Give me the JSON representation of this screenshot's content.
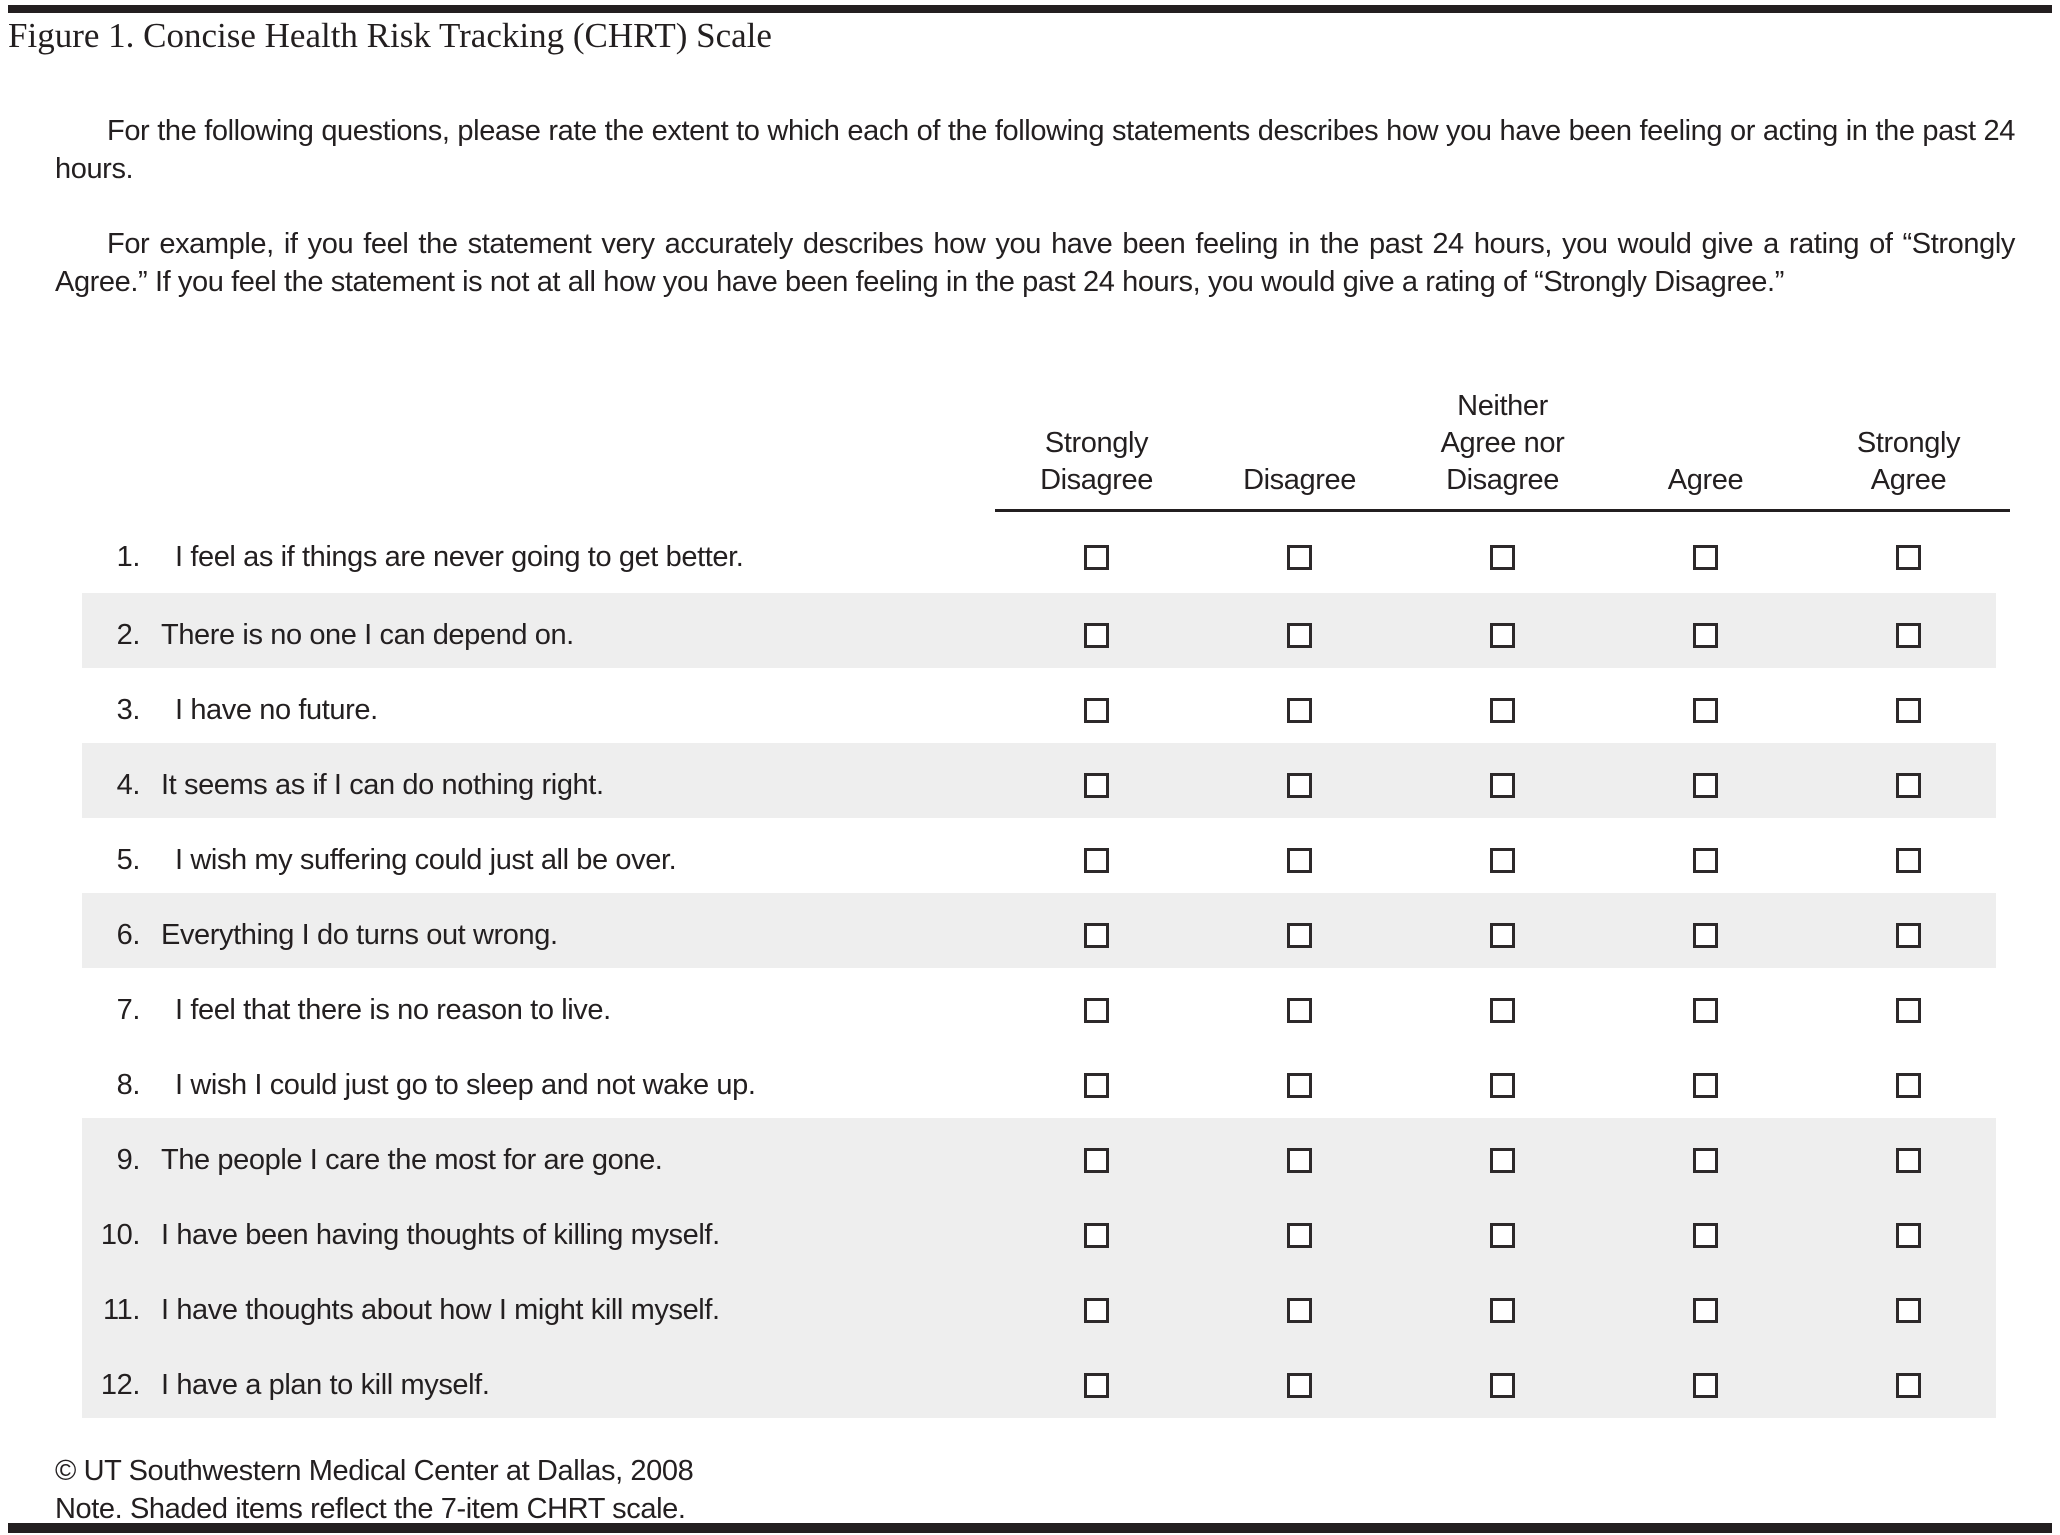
{
  "title": "Figure 1. Concise Health Risk Tracking (CHRT) Scale",
  "intro": [
    "For the following questions, please rate the extent to which each of the following statements describes how you have been feeling or acting in the past 24 hours.",
    "For example, if you feel the statement very accurately describes how you have been feeling in the past 24 hours, you would give a rating of “Strongly Agree.” If you feel the statement is not at all how you have been feeling in the past 24 hours, you would give a rating of “Strongly Disagree.”"
  ],
  "scale": {
    "options": [
      {
        "label": "Strongly Disagree",
        "lines": [
          "Strongly",
          "Disagree"
        ]
      },
      {
        "label": "Disagree",
        "lines": [
          "Disagree"
        ]
      },
      {
        "label": "Neither Agree nor Disagree",
        "lines": [
          "Neither",
          "Agree nor",
          "Disagree"
        ]
      },
      {
        "label": "Agree",
        "lines": [
          "Agree"
        ]
      },
      {
        "label": "Strongly Agree",
        "lines": [
          "Strongly",
          "Agree"
        ]
      }
    ],
    "items": [
      {
        "number": "1.",
        "text": "I feel as if things are never going to get better.",
        "shaded": false
      },
      {
        "number": "2.",
        "text": "There is no one I can depend on.",
        "shaded": true
      },
      {
        "number": "3.",
        "text": "I have no future.",
        "shaded": false
      },
      {
        "number": "4.",
        "text": "It seems as if I can do nothing right.",
        "shaded": true
      },
      {
        "number": "5.",
        "text": "I wish my suffering could just all be over.",
        "shaded": false
      },
      {
        "number": "6.",
        "text": "Everything I do turns out wrong.",
        "shaded": true
      },
      {
        "number": "7.",
        "text": "I feel that there is no reason to live.",
        "shaded": false
      },
      {
        "number": "8.",
        "text": "I wish I could just go to sleep and not wake up.",
        "shaded": false
      },
      {
        "number": "9.",
        "text": "The people I care the most for are gone.",
        "shaded": true
      },
      {
        "number": "10.",
        "text": "I have been having thoughts of killing myself.",
        "shaded": true
      },
      {
        "number": "11.",
        "text": "I have thoughts about how I might kill myself.",
        "shaded": true
      },
      {
        "number": "12.",
        "text": "I have a plan to kill myself.",
        "shaded": true
      }
    ],
    "checkbox_state": "unchecked"
  },
  "footer": {
    "copyright": "© UT Southwestern Medical Center at Dallas, 2008",
    "note": "Note. Shaded items reflect the 7-item CHRT scale."
  },
  "colors": {
    "text": "#231f20",
    "rule": "#231f20",
    "row_shading": "#eeeeee",
    "checkbox_border": "#2d292a",
    "background": "#ffffff"
  }
}
